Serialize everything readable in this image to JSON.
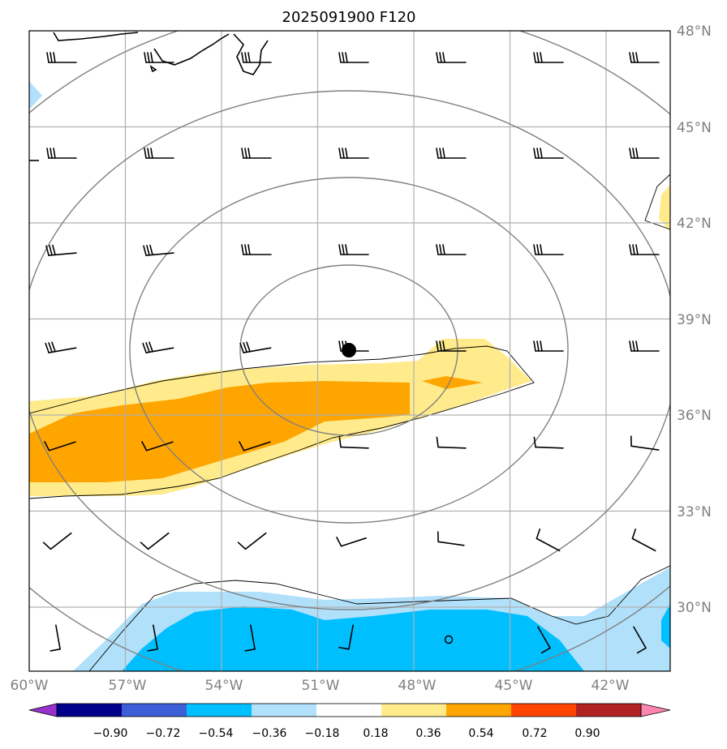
{
  "map": {
    "title": "2025091900 F120",
    "lat_labels": [
      "48°N",
      "45°N",
      "42°N",
      "39°N",
      "36°N",
      "33°N",
      "30°N"
    ],
    "lon_labels": [
      "60°W",
      "57°W",
      "54°W",
      "51°W",
      "48°W",
      "45°W",
      "42°W"
    ],
    "lat_values": [
      48,
      45,
      42,
      39,
      36,
      33,
      30
    ],
    "lon_values": [
      -60,
      -57,
      -54,
      -51,
      -48,
      -45,
      -42
    ],
    "storm_center": {
      "lat": 38.0,
      "lon": -50.1
    },
    "range_rings_deg": [
      3,
      5.5,
      8,
      10.5
    ]
  },
  "colorbar": {
    "labels": [
      "−0.90",
      "−0.72",
      "−0.54",
      "−0.36",
      "−0.18",
      "0.18",
      "0.36",
      "0.54",
      "0.72",
      "0.90"
    ],
    "colors": [
      "#9932cc",
      "#00008b",
      "#3c5ed6",
      "#00bfff",
      "#b0e0fa",
      "#ffffff",
      "#ffeb8c",
      "#ffa500",
      "#ff4500",
      "#b22222",
      "#ff85b0"
    ],
    "extend": "both"
  },
  "wind_barbs": [
    {
      "row": 0,
      "lat": 47.9,
      "type": "flag3",
      "speeds": "strong"
    },
    {
      "row": 1,
      "lat": 44.9,
      "type": "flag3",
      "speeds": "strong"
    },
    {
      "row": 2,
      "lat": 41.9,
      "type": "flag3",
      "speeds": "strong"
    },
    {
      "row": 3,
      "lat": 38.9,
      "type": "flag3",
      "speeds": "strong"
    },
    {
      "row": 4,
      "lat": 35.9,
      "type": "flag2",
      "speeds": "moderate"
    },
    {
      "row": 5,
      "lat": 32.9,
      "type": "flag1",
      "speeds": "light"
    },
    {
      "row": 6,
      "lat": 29.9,
      "type": "flag1",
      "speeds": "light"
    }
  ]
}
